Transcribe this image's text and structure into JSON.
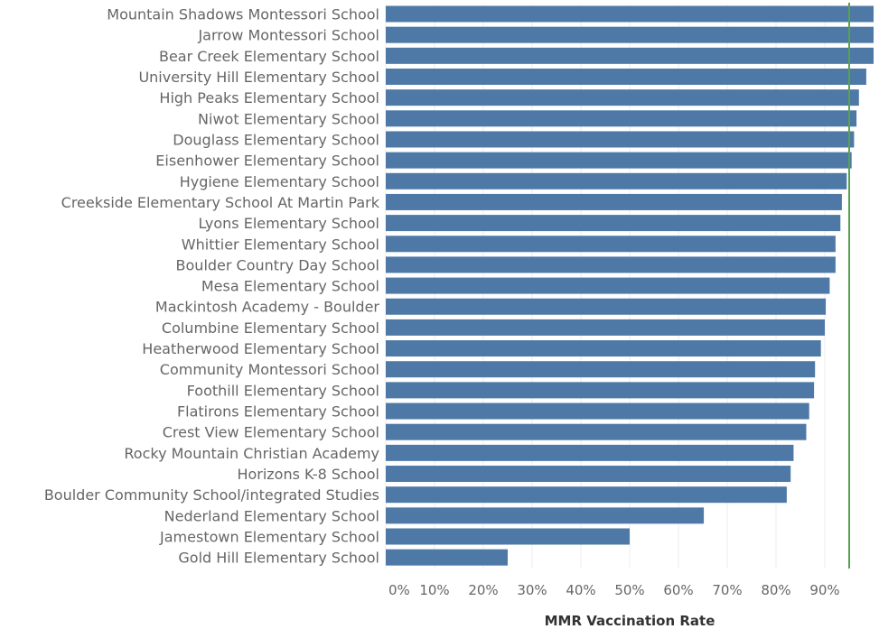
{
  "chart_data": {
    "type": "bar",
    "orientation": "horizontal",
    "xlabel": "MMR Vaccination Rate",
    "xlim": [
      0,
      1
    ],
    "x_ticks": [
      "0%",
      "10%",
      "20%",
      "30%",
      "40%",
      "50%",
      "60%",
      "70%",
      "80%",
      "90%"
    ],
    "x_tick_values": [
      0,
      0.1,
      0.2,
      0.3,
      0.4,
      0.5,
      0.6,
      0.7,
      0.8,
      0.9
    ],
    "grid": true,
    "bar_color": "#4e79a7",
    "reference_line": {
      "value": 0.95,
      "color": "#59a14f"
    },
    "categories": [
      "Mountain Shadows Montessori School",
      "Jarrow Montessori School",
      "Bear Creek Elementary School",
      "University Hill Elementary School",
      "High Peaks Elementary School",
      "Niwot Elementary School",
      "Douglass Elementary School",
      "Eisenhower Elementary School",
      "Hygiene Elementary School",
      "Creekside Elementary School At Martin Park",
      "Lyons Elementary School",
      "Whittier Elementary School",
      "Boulder Country Day School",
      "Mesa Elementary School",
      "Mackintosh Academy - Boulder",
      "Columbine Elementary School",
      "Heatherwood Elementary School",
      "Community Montessori School",
      "Foothill Elementary School",
      "Flatirons Elementary School",
      "Crest View Elementary School",
      "Rocky Mountain Christian Academy",
      "Horizons K-8 School",
      "Boulder Community School/integrated Studies",
      "Nederland Elementary School",
      "Jamestown Elementary School",
      "Gold Hill Elementary School"
    ],
    "values": [
      1.0,
      1.0,
      1.0,
      0.985,
      0.97,
      0.965,
      0.96,
      0.955,
      0.945,
      0.935,
      0.932,
      0.922,
      0.922,
      0.91,
      0.902,
      0.9,
      0.892,
      0.88,
      0.878,
      0.868,
      0.862,
      0.836,
      0.83,
      0.822,
      0.652,
      0.5,
      0.25
    ]
  }
}
